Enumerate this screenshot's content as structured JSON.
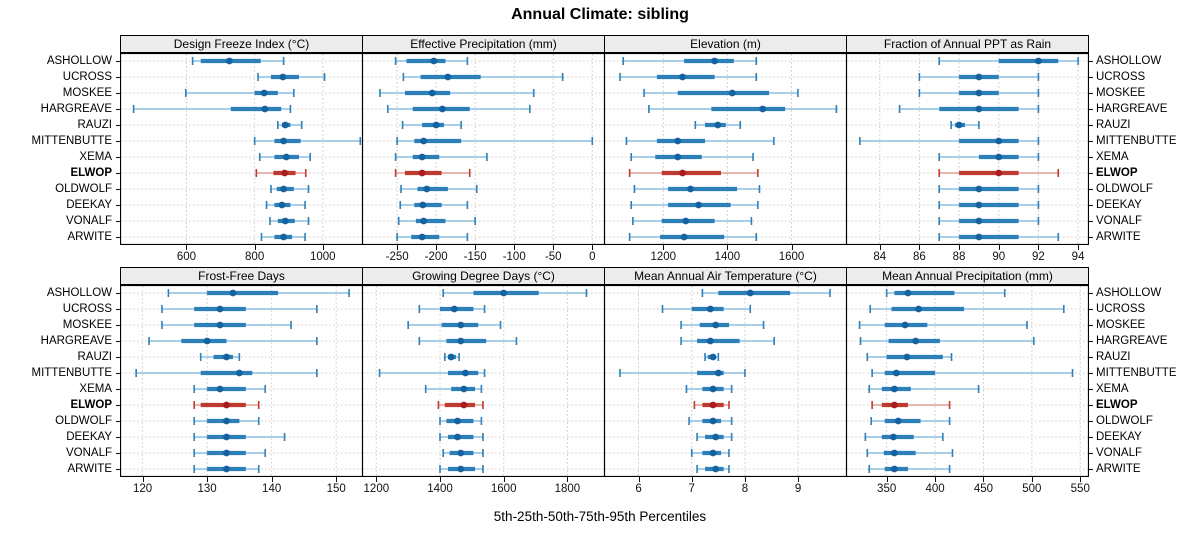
{
  "chart_data": {
    "type": "scatter",
    "subtype": "percentile-interval-trellis",
    "title": "Annual Climate: sibling",
    "caption": "5th-25th-50th-75th-95th Percentiles",
    "percentiles": [
      5,
      25,
      50,
      75,
      95
    ],
    "legend_position": "none",
    "grid": "dotted",
    "sites": [
      "ASHOLLOW",
      "UCROSS",
      "MOSKEE",
      "HARGREAVE",
      "RAUZI",
      "MITTENBUTTE",
      "XEMA",
      "ELWOP",
      "OLDWOLF",
      "DEEKAY",
      "VONALF",
      "ARWITE"
    ],
    "highlight_site": "ELWOP",
    "colors": {
      "normal": {
        "dot": "#16629E",
        "box": "#2C7FB8",
        "whisker": "#9CC7E4",
        "cap": "#2C7FB8"
      },
      "highlight": {
        "dot": "#A91D22",
        "box": "#BF3A2E",
        "whisker": "#E4ABA6",
        "cap": "#BF3A2E"
      },
      "strip_bg": "#ececec",
      "grid": "#c9c9c9",
      "border": "#000000"
    },
    "panels": [
      {
        "title": "Design Freeze Index (°C)",
        "xlim": [
          405,
          1115
        ],
        "ticks": [
          600,
          800,
          1000
        ],
        "values": [
          [
            618,
            642,
            726,
            818,
            885
          ],
          [
            810,
            848,
            883,
            930,
            1005
          ],
          [
            598,
            800,
            828,
            868,
            915
          ],
          [
            445,
            730,
            830,
            878,
            905
          ],
          [
            868,
            880,
            890,
            905,
            938
          ],
          [
            800,
            858,
            885,
            935,
            1110
          ],
          [
            815,
            858,
            893,
            930,
            963
          ],
          [
            805,
            855,
            888,
            920,
            950
          ],
          [
            848,
            865,
            885,
            915,
            958
          ],
          [
            835,
            858,
            880,
            905,
            948
          ],
          [
            845,
            868,
            890,
            918,
            958
          ],
          [
            820,
            858,
            885,
            910,
            948
          ]
        ]
      },
      {
        "title": "Effective Precipitation (mm)",
        "xlim": [
          -295,
          15
        ],
        "ticks": [
          -250,
          -200,
          -150,
          -100,
          -50,
          0
        ],
        "values": [
          [
            -252,
            -238,
            -203,
            -188,
            -160
          ],
          [
            -242,
            -220,
            -185,
            -143,
            -38
          ],
          [
            -272,
            -240,
            -205,
            -182,
            -75
          ],
          [
            -262,
            -230,
            -192,
            -157,
            -80
          ],
          [
            -243,
            -218,
            -200,
            -190,
            -168
          ],
          [
            -250,
            -228,
            -216,
            -168,
            0
          ],
          [
            -252,
            -230,
            -218,
            -196,
            -135
          ],
          [
            -252,
            -240,
            -218,
            -193,
            -157
          ],
          [
            -245,
            -224,
            -212,
            -185,
            -148
          ],
          [
            -246,
            -228,
            -217,
            -193,
            -160
          ],
          [
            -248,
            -226,
            -216,
            -188,
            -150
          ],
          [
            -250,
            -232,
            -218,
            -196,
            -160
          ]
        ]
      },
      {
        "title": "Elevation (m)",
        "xlim": [
          1015,
          1770
        ],
        "ticks": [
          1200,
          1400,
          1600
        ],
        "values": [
          [
            1075,
            1265,
            1360,
            1420,
            1490
          ],
          [
            1065,
            1180,
            1260,
            1360,
            1490
          ],
          [
            1140,
            1245,
            1415,
            1530,
            1620
          ],
          [
            1155,
            1350,
            1510,
            1580,
            1740
          ],
          [
            1300,
            1330,
            1370,
            1395,
            1440
          ],
          [
            1085,
            1180,
            1245,
            1330,
            1545
          ],
          [
            1100,
            1175,
            1245,
            1320,
            1480
          ],
          [
            1095,
            1195,
            1260,
            1380,
            1495
          ],
          [
            1110,
            1215,
            1285,
            1430,
            1500
          ],
          [
            1100,
            1215,
            1310,
            1410,
            1495
          ],
          [
            1105,
            1195,
            1270,
            1360,
            1475
          ],
          [
            1095,
            1190,
            1265,
            1390,
            1490
          ]
        ]
      },
      {
        "title": "Fraction of Annual PPT as Rain",
        "xlim": [
          82.3,
          94.5
        ],
        "ticks": [
          84,
          86,
          88,
          90,
          92,
          94
        ],
        "values": [
          [
            87,
            90,
            92,
            93,
            94
          ],
          [
            86,
            88,
            89,
            90,
            92
          ],
          [
            86,
            88,
            89,
            90,
            92
          ],
          [
            85,
            87,
            89,
            91,
            92
          ],
          [
            87.6,
            87.8,
            88,
            88.3,
            89
          ],
          [
            83,
            88,
            90,
            91,
            92
          ],
          [
            87,
            89,
            90,
            91,
            92
          ],
          [
            87,
            88,
            90,
            91,
            93
          ],
          [
            87,
            88,
            89,
            91,
            92
          ],
          [
            87,
            88,
            89,
            91,
            92
          ],
          [
            87,
            88,
            89,
            91,
            92
          ],
          [
            87,
            88,
            89,
            91,
            93
          ]
        ]
      },
      {
        "title": "Frost-Free Days",
        "xlim": [
          116.5,
          154
        ],
        "ticks": [
          120,
          130,
          140,
          150
        ],
        "values": [
          [
            124,
            130,
            134,
            141,
            152
          ],
          [
            123,
            128,
            132,
            136,
            147
          ],
          [
            123,
            128,
            132,
            136,
            143
          ],
          [
            121,
            126,
            130,
            133,
            147
          ],
          [
            129,
            131,
            133,
            134,
            135
          ],
          [
            119,
            129,
            135,
            137,
            147
          ],
          [
            128,
            130,
            132,
            136,
            139
          ],
          [
            128,
            129,
            133,
            136,
            138
          ],
          [
            128,
            130,
            133,
            135,
            138
          ],
          [
            128,
            130,
            133,
            136,
            142
          ],
          [
            128,
            130,
            133,
            136,
            139
          ],
          [
            128,
            130,
            133,
            136,
            138
          ]
        ]
      },
      {
        "title": "Growing Degree Days (°C)",
        "xlim": [
          1155,
          1915
        ],
        "ticks": [
          1200,
          1400,
          1600,
          1800
        ],
        "values": [
          [
            1410,
            1505,
            1600,
            1710,
            1860
          ],
          [
            1335,
            1400,
            1445,
            1505,
            1540
          ],
          [
            1300,
            1405,
            1465,
            1520,
            1590
          ],
          [
            1335,
            1420,
            1465,
            1545,
            1640
          ],
          [
            1415,
            1425,
            1435,
            1450,
            1460
          ],
          [
            1210,
            1425,
            1480,
            1520,
            1540
          ],
          [
            1355,
            1435,
            1475,
            1510,
            1530
          ],
          [
            1395,
            1415,
            1475,
            1510,
            1535
          ],
          [
            1400,
            1420,
            1455,
            1505,
            1530
          ],
          [
            1400,
            1425,
            1455,
            1505,
            1535
          ],
          [
            1410,
            1430,
            1465,
            1505,
            1535
          ],
          [
            1400,
            1425,
            1465,
            1510,
            1535
          ]
        ]
      },
      {
        "title": "Mean Annual Air Temperature (°C)",
        "xlim": [
          5.35,
          9.9
        ],
        "ticks": [
          6,
          7,
          8,
          9
        ],
        "values": [
          [
            7.2,
            7.5,
            8.1,
            8.85,
            9.6
          ],
          [
            6.45,
            7.0,
            7.35,
            7.6,
            8.1
          ],
          [
            6.8,
            7.15,
            7.45,
            7.7,
            8.35
          ],
          [
            6.8,
            7.1,
            7.35,
            7.9,
            8.55
          ],
          [
            7.25,
            7.3,
            7.4,
            7.45,
            7.5
          ],
          [
            5.65,
            7.1,
            7.5,
            7.6,
            8.0
          ],
          [
            6.9,
            7.2,
            7.4,
            7.6,
            7.75
          ],
          [
            7.05,
            7.2,
            7.4,
            7.6,
            7.7
          ],
          [
            6.95,
            7.2,
            7.4,
            7.55,
            7.75
          ],
          [
            7.1,
            7.25,
            7.45,
            7.6,
            7.75
          ],
          [
            7.0,
            7.2,
            7.4,
            7.55,
            7.7
          ],
          [
            7.1,
            7.25,
            7.45,
            7.6,
            7.7
          ]
        ]
      },
      {
        "title": "Mean Annual Precipitation (mm)",
        "xlim": [
          308,
          558
        ],
        "ticks": [
          350,
          400,
          450,
          500,
          550
        ],
        "values": [
          [
            350,
            358,
            372,
            420,
            472
          ],
          [
            333,
            355,
            383,
            430,
            533
          ],
          [
            322,
            348,
            369,
            392,
            495
          ],
          [
            323,
            352,
            380,
            405,
            502
          ],
          [
            330,
            350,
            371,
            408,
            417
          ],
          [
            335,
            348,
            360,
            400,
            542
          ],
          [
            332,
            345,
            358,
            375,
            445
          ],
          [
            335,
            345,
            358,
            372,
            415
          ],
          [
            334,
            348,
            362,
            385,
            415
          ],
          [
            328,
            345,
            357,
            378,
            408
          ],
          [
            330,
            347,
            358,
            380,
            418
          ],
          [
            332,
            348,
            358,
            372,
            415
          ]
        ]
      }
    ]
  }
}
